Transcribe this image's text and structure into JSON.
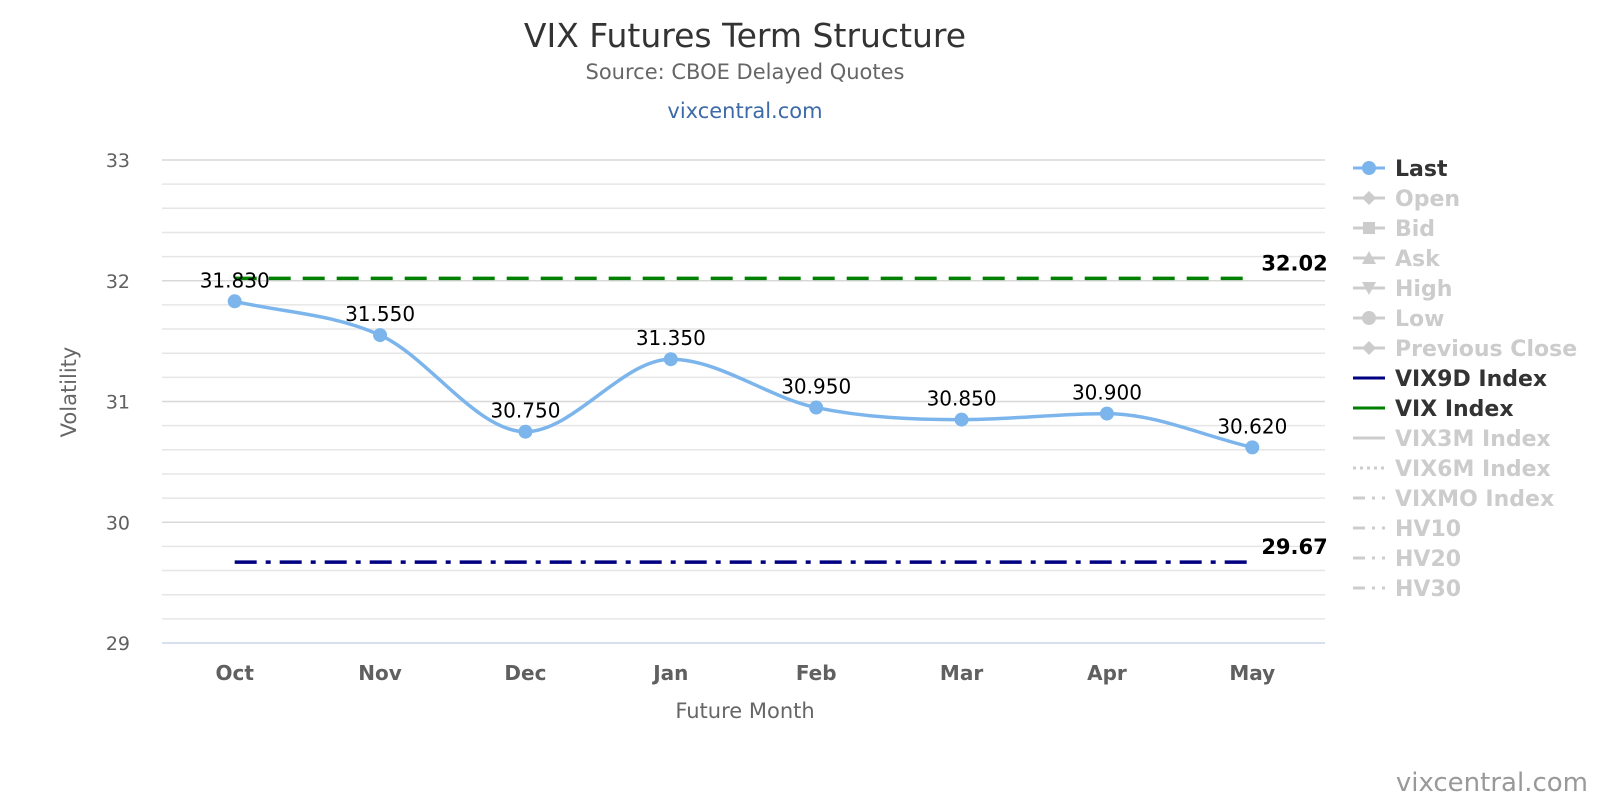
{
  "chart_data": {
    "type": "line",
    "title": "VIX Futures Term Structure",
    "subtitle": "Source: CBOE Delayed Quotes",
    "subtitle_link": "vixcentral.com",
    "xlabel": "Future Month",
    "ylabel": "Volatility",
    "ylim": [
      29,
      33
    ],
    "yticks": [
      "29",
      "30",
      "31",
      "32",
      "33"
    ],
    "categories": [
      "Oct",
      "Nov",
      "Dec",
      "Jan",
      "Feb",
      "Mar",
      "Apr",
      "May"
    ],
    "grid": true,
    "legend_position": "right",
    "series": [
      {
        "name": "Last",
        "values": [
          31.83,
          31.55,
          30.75,
          31.35,
          30.95,
          30.85,
          30.9,
          30.62
        ],
        "labels": [
          "31.830",
          "31.550",
          "30.750",
          "31.350",
          "30.950",
          "30.850",
          "30.900",
          "30.620"
        ],
        "color": "#7cb5ec"
      },
      {
        "name": "VIX Index",
        "value": 32.02,
        "label": "32.02",
        "color": "#008000"
      },
      {
        "name": "VIX9D Index",
        "value": 29.67,
        "label": "29.67",
        "color": "#000080"
      }
    ],
    "legend": [
      {
        "name": "Last",
        "active": true,
        "symbol": "circle",
        "color": "#7cb5ec"
      },
      {
        "name": "Open",
        "active": false,
        "symbol": "diamond"
      },
      {
        "name": "Bid",
        "active": false,
        "symbol": "square"
      },
      {
        "name": "Ask",
        "active": false,
        "symbol": "triangle"
      },
      {
        "name": "High",
        "active": false,
        "symbol": "triangle-down"
      },
      {
        "name": "Low",
        "active": false,
        "symbol": "circle"
      },
      {
        "name": "Previous Close",
        "active": false,
        "symbol": "diamond"
      },
      {
        "name": "VIX9D Index",
        "active": true,
        "symbol": "line",
        "color": "#000080"
      },
      {
        "name": "VIX Index",
        "active": true,
        "symbol": "line",
        "color": "#008000"
      },
      {
        "name": "VIX3M Index",
        "active": false,
        "symbol": "line"
      },
      {
        "name": "VIX6M Index",
        "active": false,
        "symbol": "dot"
      },
      {
        "name": "VIXMO Index",
        "active": false,
        "symbol": "dashdot"
      },
      {
        "name": "HV10",
        "active": false,
        "symbol": "dashdot"
      },
      {
        "name": "HV20",
        "active": false,
        "symbol": "dashdot"
      },
      {
        "name": "HV30",
        "active": false,
        "symbol": "dashdot"
      }
    ],
    "credit": "vixcentral.com"
  }
}
